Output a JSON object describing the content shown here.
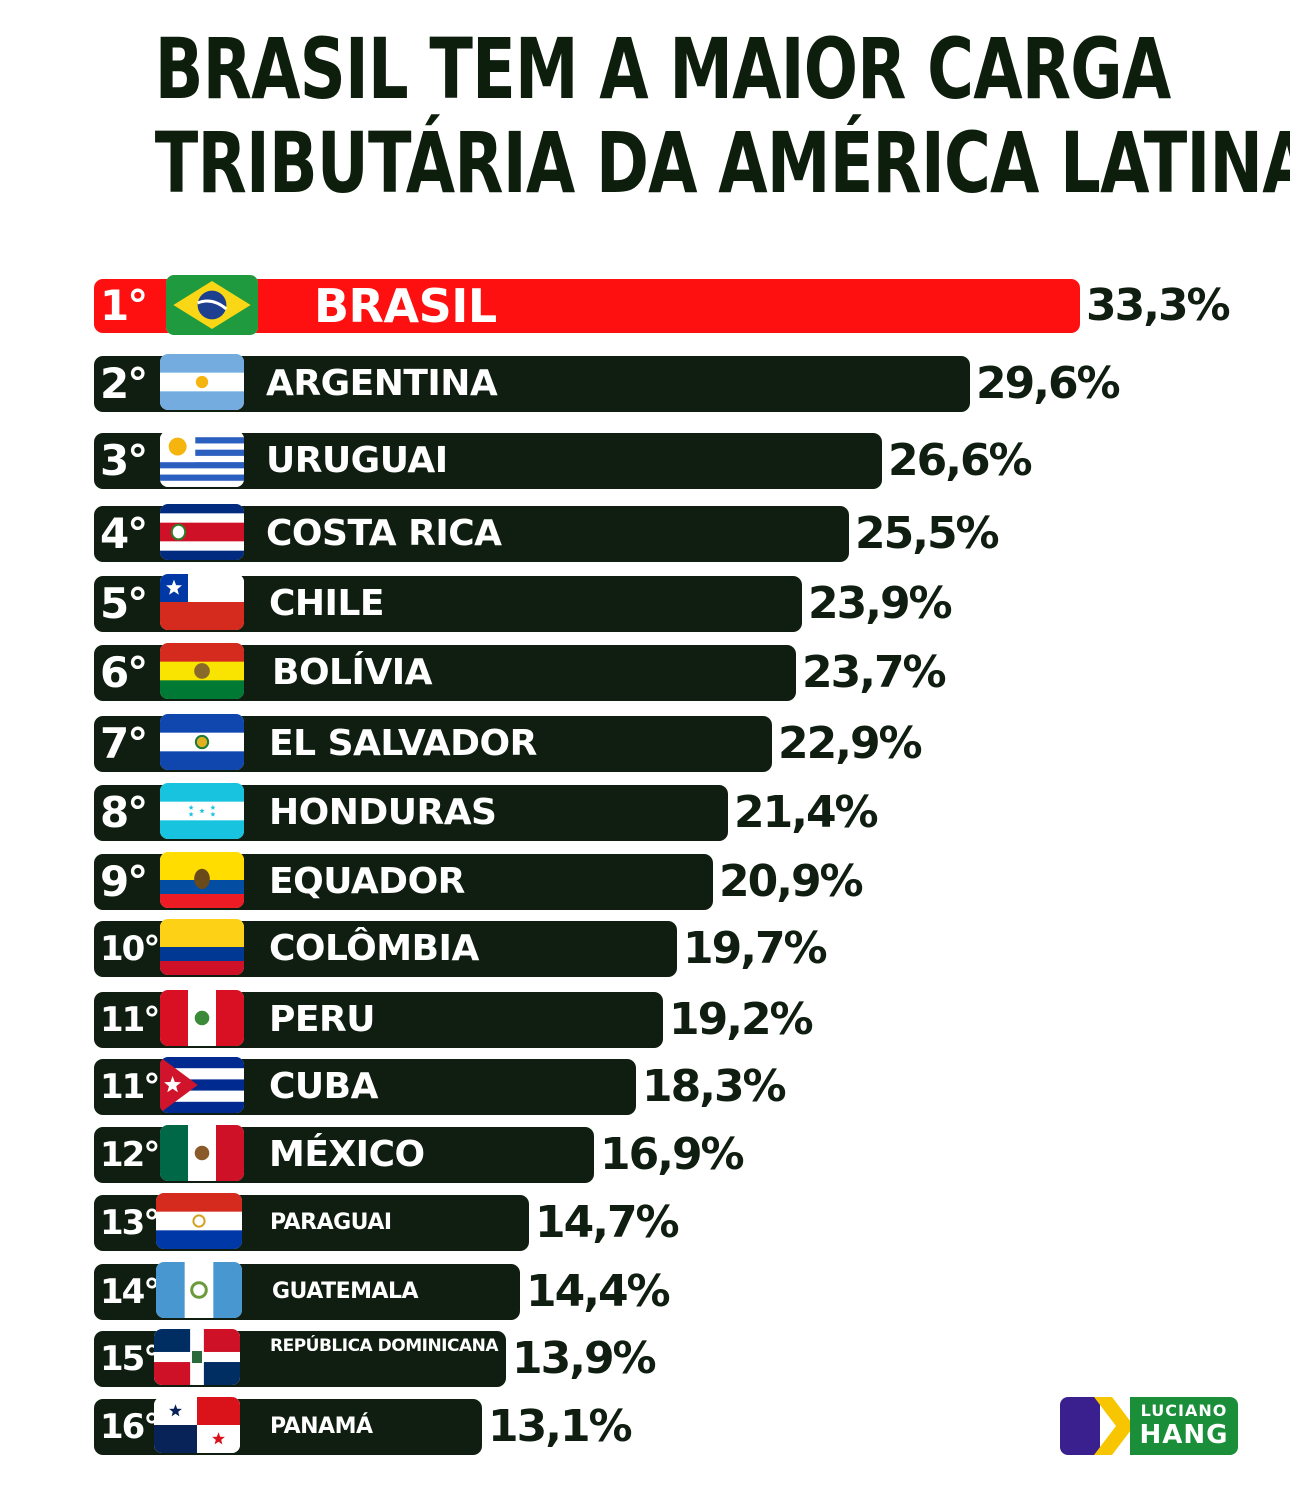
{
  "chart_data": {
    "type": "bar",
    "title": "BRASIL TEM A MAIOR CARGA TRIBUTÁRIA DA AMÉRICA LATINA!",
    "title_lines": [
      "BRASIL TEM A MAIOR CARGA",
      "TRIBUTÁRIA DA AMÉRICA LATINA!"
    ],
    "orientation": "horizontal",
    "highlight_color": "#ff1010",
    "bar_color": "#0f1e10",
    "rows": [
      {
        "rank": "1°",
        "country": "BRASIL",
        "value": 33.3,
        "label": "33,3%",
        "flag": "brazil-flag-icon",
        "highlight": true
      },
      {
        "rank": "2°",
        "country": "ARGENTINA",
        "value": 29.6,
        "label": "29,6%",
        "flag": "argentina-flag-icon"
      },
      {
        "rank": "3°",
        "country": "URUGUAI",
        "value": 26.6,
        "label": "26,6%",
        "flag": "uruguay-flag-icon"
      },
      {
        "rank": "4°",
        "country": "COSTA RICA",
        "value": 25.5,
        "label": "25,5%",
        "flag": "costa-rica-flag-icon"
      },
      {
        "rank": "5°",
        "country": "CHILE",
        "value": 23.9,
        "label": "23,9%",
        "flag": "chile-flag-icon"
      },
      {
        "rank": "6°",
        "country": "BOLÍVIA",
        "value": 23.7,
        "label": "23,7%",
        "flag": "bolivia-flag-icon"
      },
      {
        "rank": "7°",
        "country": "EL SALVADOR",
        "value": 22.9,
        "label": "22,9%",
        "flag": "el-salvador-flag-icon"
      },
      {
        "rank": "8°",
        "country": "HONDURAS",
        "value": 21.4,
        "label": "21,4%",
        "flag": "honduras-flag-icon"
      },
      {
        "rank": "9°",
        "country": "EQUADOR",
        "value": 20.9,
        "label": "20,9%",
        "flag": "ecuador-flag-icon"
      },
      {
        "rank": "10°",
        "country": "COLÔMBIA",
        "value": 19.7,
        "label": "19,7%",
        "flag": "colombia-flag-icon"
      },
      {
        "rank": "11°",
        "country": "PERU",
        "value": 19.2,
        "label": "19,2%",
        "flag": "peru-flag-icon"
      },
      {
        "rank": "11°",
        "country": "CUBA",
        "value": 18.3,
        "label": "18,3%",
        "flag": "cuba-flag-icon"
      },
      {
        "rank": "12°",
        "country": "MÉXICO",
        "value": 16.9,
        "label": "16,9%",
        "flag": "mexico-flag-icon"
      },
      {
        "rank": "13°",
        "country": "PARAGUAI",
        "value": 14.7,
        "label": "14,7%",
        "flag": "paraguay-flag-icon"
      },
      {
        "rank": "14°",
        "country": "GUATEMALA",
        "value": 14.4,
        "label": "14,4%",
        "flag": "guatemala-flag-icon"
      },
      {
        "rank": "15°",
        "country": "REPÚBLICA DOMINICANA",
        "value": 13.9,
        "label": "13,9%",
        "flag": "dominican-republic-flag-icon"
      },
      {
        "rank": "16°",
        "country": "PANAMÁ",
        "value": 13.1,
        "label": "13,1%",
        "flag": "panama-flag-icon"
      }
    ]
  },
  "logo": {
    "line1": "LUCIANO",
    "line2": "HANG",
    "colors": [
      "#3a1f8f",
      "#f7c600",
      "#1b8e3a"
    ]
  }
}
